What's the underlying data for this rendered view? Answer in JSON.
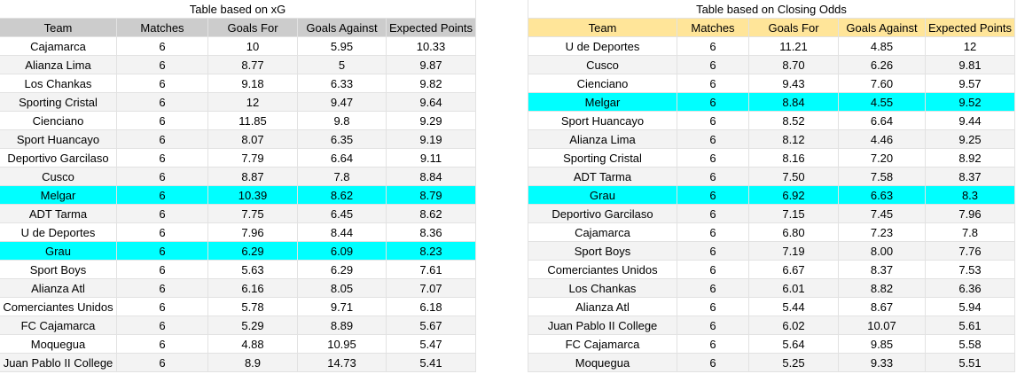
{
  "tables": [
    {
      "title": "Table based on xG",
      "header_color": "#cccccc",
      "highlight_color": "#00ffff",
      "highlight_rows": [
        8,
        11
      ],
      "columns": [
        "Team",
        "Matches",
        "Goals For",
        "Goals Against",
        "Expected Points"
      ],
      "rows": [
        [
          "Cajamarca",
          "6",
          "10",
          "5.95",
          "10.33"
        ],
        [
          "Alianza Lima",
          "6",
          "8.77",
          "5",
          "9.87"
        ],
        [
          "Los Chankas",
          "6",
          "9.18",
          "6.33",
          "9.82"
        ],
        [
          "Sporting Cristal",
          "6",
          "12",
          "9.47",
          "9.64"
        ],
        [
          "Cienciano",
          "6",
          "11.85",
          "9.8",
          "9.29"
        ],
        [
          "Sport Huancayo",
          "6",
          "8.07",
          "6.35",
          "9.19"
        ],
        [
          "Deportivo Garcilaso",
          "6",
          "7.79",
          "6.64",
          "9.11"
        ],
        [
          "Cusco",
          "6",
          "8.87",
          "7.8",
          "8.84"
        ],
        [
          "Melgar",
          "6",
          "10.39",
          "8.62",
          "8.79"
        ],
        [
          "ADT Tarma",
          "6",
          "7.75",
          "6.45",
          "8.62"
        ],
        [
          "U de Deportes",
          "6",
          "7.96",
          "8.44",
          "8.36"
        ],
        [
          "Grau",
          "6",
          "6.29",
          "6.09",
          "8.23"
        ],
        [
          "Sport Boys",
          "6",
          "5.63",
          "6.29",
          "7.61"
        ],
        [
          "Alianza Atl",
          "6",
          "6.16",
          "8.05",
          "7.07"
        ],
        [
          "Comerciantes Unidos",
          "6",
          "5.78",
          "9.71",
          "6.18"
        ],
        [
          "FC Cajamarca",
          "6",
          "5.29",
          "8.89",
          "5.67"
        ],
        [
          "Moquegua",
          "6",
          "4.88",
          "10.95",
          "5.47"
        ],
        [
          "Juan Pablo II College",
          "6",
          "8.9",
          "14.73",
          "5.41"
        ]
      ]
    },
    {
      "title": "Table based on Closing Odds",
      "header_color": "#ffe599",
      "highlight_color": "#00ffff",
      "highlight_rows": [
        3,
        8
      ],
      "columns": [
        "Team",
        "Matches",
        "Goals For",
        "Goals Against",
        "Expected Points"
      ],
      "rows": [
        [
          "U de Deportes",
          "6",
          "11.21",
          "4.85",
          "12"
        ],
        [
          "Cusco",
          "6",
          "8.70",
          "6.26",
          "9.81"
        ],
        [
          "Cienciano",
          "6",
          "9.43",
          "7.60",
          "9.57"
        ],
        [
          "Melgar",
          "6",
          "8.84",
          "4.55",
          "9.52"
        ],
        [
          "Sport Huancayo",
          "6",
          "8.52",
          "6.64",
          "9.44"
        ],
        [
          "Alianza Lima",
          "6",
          "8.12",
          "4.46",
          "9.25"
        ],
        [
          "Sporting Cristal",
          "6",
          "8.16",
          "7.20",
          "8.92"
        ],
        [
          "ADT Tarma",
          "6",
          "7.50",
          "7.58",
          "8.37"
        ],
        [
          "Grau",
          "6",
          "6.92",
          "6.63",
          "8.3"
        ],
        [
          "Deportivo Garcilaso",
          "6",
          "7.15",
          "7.45",
          "7.96"
        ],
        [
          "Cajamarca",
          "6",
          "6.80",
          "7.23",
          "7.8"
        ],
        [
          "Sport Boys",
          "6",
          "7.19",
          "8.00",
          "7.76"
        ],
        [
          "Comerciantes Unidos",
          "6",
          "6.67",
          "8.37",
          "7.53"
        ],
        [
          "Los Chankas",
          "6",
          "6.01",
          "8.82",
          "6.36"
        ],
        [
          "Alianza Atl",
          "6",
          "5.44",
          "8.67",
          "5.94"
        ],
        [
          "Juan Pablo II College",
          "6",
          "6.02",
          "10.07",
          "5.61"
        ],
        [
          "FC Cajamarca",
          "6",
          "5.64",
          "9.85",
          "5.58"
        ],
        [
          "Moquegua",
          "6",
          "5.25",
          "9.33",
          "5.51"
        ]
      ]
    }
  ]
}
